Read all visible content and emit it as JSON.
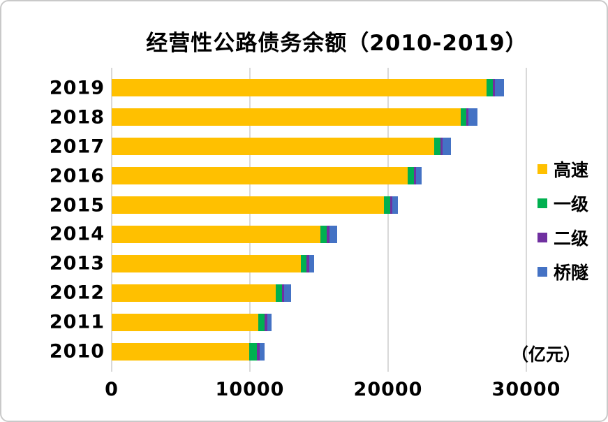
{
  "page": {
    "background": "#ffffff",
    "card_border_color": "#c9c9c9"
  },
  "chart_data": {
    "type": "bar",
    "orientation": "horizontal",
    "stacked": true,
    "title": "经营性公路债务余额（2010-2019）",
    "unit_label": "（亿元）",
    "categories": [
      "2019",
      "2018",
      "2017",
      "2016",
      "2015",
      "2014",
      "2013",
      "2012",
      "2011",
      "2010"
    ],
    "series": [
      {
        "key": "expressway",
        "name": "高速",
        "color": "#FFC000",
        "values": [
          27140,
          25230,
          23330,
          21400,
          19700,
          15110,
          13680,
          11880,
          10590,
          9970
        ]
      },
      {
        "key": "class1",
        "name": "一级",
        "color": "#00B050",
        "values": [
          430,
          420,
          470,
          460,
          430,
          470,
          430,
          460,
          480,
          560
        ]
      },
      {
        "key": "class2",
        "name": "二级",
        "color": "#7030A0",
        "values": [
          170,
          170,
          140,
          140,
          170,
          170,
          170,
          130,
          170,
          200
        ]
      },
      {
        "key": "bridge-tunnel",
        "name": "桥隧",
        "color": "#4472C4",
        "values": [
          670,
          640,
          620,
          450,
          420,
          540,
          370,
          490,
          340,
          340
        ]
      }
    ],
    "x_ticks": [
      0,
      10000,
      20000,
      30000
    ],
    "xlim": [
      0,
      30000
    ],
    "grid": "vertical",
    "gridline_color": "#d9d9d9",
    "legend_position": "right"
  }
}
